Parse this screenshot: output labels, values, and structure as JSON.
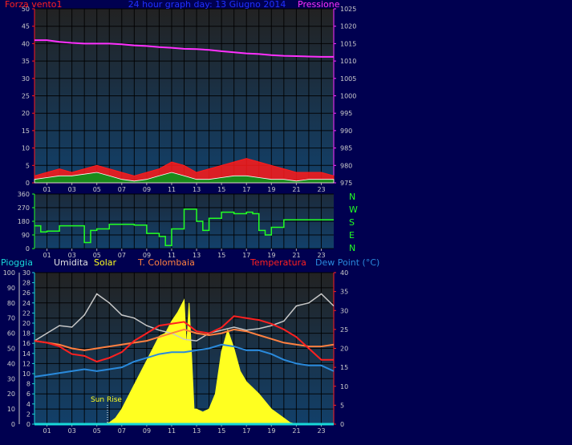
{
  "title": "24 hour graph day: 13 Giugno 2014",
  "colors": {
    "background": "#000050",
    "plot_top": "#222222",
    "plot_bottom": "#12406a",
    "wind": "#ff1a1a",
    "gust": "#1a8a1a",
    "pressure": "#ff30ff",
    "direction": "#22ff22",
    "humidity": "#c8c8c8",
    "solar": "#ffff20",
    "tcolombaia": "#ff8040",
    "temperature": "#ff2020",
    "dewpoint": "#2a8adc",
    "rain": "#18d8d8"
  },
  "x_ticks": [
    "01",
    "03",
    "05",
    "07",
    "09",
    "11",
    "13",
    "15",
    "17",
    "19",
    "21",
    "23"
  ],
  "panel1": {
    "left_label": "Forza vento1",
    "right_label": "Pressione",
    "left_ticks": [
      "0",
      "5",
      "10",
      "15",
      "20",
      "25",
      "30",
      "35",
      "40",
      "45",
      "50"
    ],
    "right_ticks": [
      "975",
      "980",
      "985",
      "990",
      "995",
      "1000",
      "1005",
      "1010",
      "1015",
      "1020",
      "1025"
    ]
  },
  "panel2": {
    "left_ticks": [
      "0",
      "90",
      "180",
      "270",
      "360"
    ],
    "compass": [
      "N",
      "W",
      "S",
      "E",
      "N"
    ]
  },
  "panel3": {
    "labels": {
      "rain": "Pioggia",
      "humidity": "Umidita",
      "solar": "Solar",
      "tcolombaia": "T. Colombaia",
      "temperature": "Temperatura",
      "dewpoint": "Dew Point (°C)"
    },
    "hum_ticks": [
      "0",
      "10",
      "20",
      "30",
      "40",
      "50",
      "60",
      "70",
      "80",
      "90",
      "100"
    ],
    "rain_ticks": [
      "0",
      "2",
      "4",
      "6",
      "8",
      "10",
      "12",
      "14",
      "16",
      "18",
      "20",
      "22",
      "24",
      "26",
      "28",
      "30"
    ],
    "temp_ticks": [
      "0",
      "5",
      "10",
      "15",
      "20",
      "25",
      "30",
      "35",
      "40"
    ],
    "annotation": "Sun Rise"
  },
  "chart_data": [
    {
      "type": "line",
      "x_unit": "hour",
      "xlim": [
        0,
        24
      ],
      "series": [
        {
          "name": "Pressione",
          "axis": "right",
          "ylim": [
            975,
            1025
          ],
          "x": [
            0,
            1,
            2,
            3,
            4,
            5,
            6,
            7,
            8,
            9,
            10,
            11,
            12,
            13,
            14,
            15,
            16,
            17,
            18,
            19,
            20,
            21,
            22,
            23,
            24
          ],
          "values": [
            1016,
            1016,
            1015.5,
            1015.2,
            1015,
            1015,
            1015,
            1014.8,
            1014.5,
            1014.3,
            1014,
            1013.8,
            1013.5,
            1013.4,
            1013.2,
            1012.8,
            1012.5,
            1012.2,
            1012,
            1011.7,
            1011.5,
            1011.4,
            1011.3,
            1011.2,
            1011.2
          ]
        },
        {
          "name": "Forza vento1",
          "axis": "left",
          "ylim": [
            0,
            50
          ],
          "x": [
            0,
            1,
            2,
            3,
            4,
            5,
            6,
            7,
            8,
            9,
            10,
            11,
            12,
            13,
            14,
            15,
            16,
            17,
            18,
            19,
            20,
            21,
            22,
            23,
            24
          ],
          "values": [
            2,
            3,
            4,
            3,
            4,
            5,
            4,
            3,
            2,
            3,
            4,
            6,
            5,
            3,
            4,
            5,
            6,
            7,
            6,
            5,
            4,
            3,
            3,
            3,
            2
          ]
        },
        {
          "axis": "left",
          "ylim": [
            0,
            50
          ],
          "x": [
            0,
            1,
            2,
            3,
            4,
            5,
            6,
            7,
            8,
            9,
            10,
            11,
            12,
            13,
            14,
            15,
            16,
            17,
            18,
            19,
            20,
            21,
            22,
            23,
            24
          ],
          "values": [
            1,
            1.5,
            2,
            2,
            2.5,
            3,
            2,
            1,
            0.5,
            1,
            2,
            3,
            2,
            1,
            1,
            1.5,
            2,
            2,
            1.5,
            1,
            1,
            0.5,
            1,
            1,
            1
          ]
        }
      ]
    },
    {
      "type": "line",
      "x_unit": "hour",
      "xlim": [
        0,
        24
      ],
      "ylim": [
        0,
        360
      ],
      "series": [
        {
          "axis": "left",
          "x": [
            0,
            0.5,
            1,
            2,
            3,
            4,
            4.5,
            5,
            6,
            7,
            8,
            9,
            10,
            10.5,
            11,
            12,
            13,
            13.5,
            14,
            15,
            16,
            17,
            17.5,
            18,
            18.5,
            19,
            20,
            21,
            22,
            23,
            24
          ],
          "values": [
            150,
            110,
            115,
            150,
            150,
            40,
            120,
            130,
            160,
            160,
            155,
            100,
            80,
            20,
            130,
            260,
            180,
            120,
            200,
            240,
            230,
            240,
            230,
            120,
            90,
            140,
            190,
            190,
            190,
            190,
            190
          ]
        }
      ]
    },
    {
      "type": "line",
      "x_unit": "hour",
      "xlim": [
        0,
        24
      ],
      "series": [
        {
          "name": "Umidita",
          "axis": "left",
          "ylim": [
            0,
            100
          ],
          "x": [
            0,
            1,
            2,
            3,
            4,
            5,
            6,
            7,
            8,
            9,
            10,
            11,
            12,
            13,
            14,
            15,
            16,
            17,
            18,
            19,
            20,
            21,
            22,
            23,
            24
          ],
          "values": [
            55,
            60,
            65,
            64,
            72,
            86,
            80,
            72,
            70,
            65,
            62,
            60,
            56,
            55,
            60,
            62,
            64,
            62,
            63,
            65,
            68,
            78,
            80,
            86,
            78
          ]
        },
        {
          "name": "T. Colombaia",
          "axis": "right",
          "ylim": [
            0,
            40
          ],
          "x": [
            0,
            1,
            2,
            3,
            4,
            5,
            6,
            7,
            8,
            9,
            10,
            11,
            12,
            13,
            14,
            15,
            16,
            17,
            18,
            19,
            20,
            21,
            22,
            23,
            24
          ],
          "values": [
            22,
            21.5,
            21,
            20,
            19.5,
            20,
            20.5,
            21,
            21.5,
            22,
            23,
            24,
            25,
            24,
            23.5,
            24,
            25,
            24.5,
            23.5,
            22.5,
            21.5,
            21,
            20.5,
            20.5,
            21
          ]
        },
        {
          "name": "Temperatura",
          "axis": "right",
          "ylim": [
            0,
            40
          ],
          "x": [
            0,
            1,
            2,
            3,
            4,
            5,
            6,
            7,
            8,
            9,
            10,
            11,
            12,
            13,
            14,
            15,
            16,
            17,
            18,
            19,
            20,
            21,
            22,
            23,
            24
          ],
          "values": [
            22,
            21.5,
            20.5,
            18.5,
            18,
            16.5,
            17.5,
            19,
            22,
            24,
            26,
            26.5,
            27,
            24.5,
            24,
            25.5,
            28.5,
            28,
            27.5,
            26.5,
            25,
            23,
            20,
            17,
            17
          ]
        },
        {
          "name": "Dew Point (°C)",
          "axis": "right",
          "ylim": [
            0,
            40
          ],
          "x": [
            0,
            1,
            2,
            3,
            4,
            5,
            6,
            7,
            8,
            9,
            10,
            11,
            12,
            13,
            14,
            15,
            16,
            17,
            18,
            19,
            20,
            21,
            22,
            23,
            24
          ],
          "values": [
            12.5,
            13,
            13.5,
            14,
            14.5,
            14,
            14.5,
            15,
            16.5,
            17.5,
            18.5,
            19,
            19,
            19.5,
            20,
            21,
            20.5,
            19.5,
            19.5,
            18.5,
            17,
            16,
            15.5,
            15.5,
            14
          ]
        },
        {
          "name": "Solar",
          "axis": "left",
          "ylim": [
            0,
            100
          ],
          "x": [
            0,
            5.5,
            6,
            6.5,
            7,
            8,
            9,
            10,
            10.5,
            11,
            11.5,
            12,
            12.2,
            12.4,
            12.8,
            13,
            13.5,
            14,
            14.5,
            15,
            15.5,
            16,
            16.5,
            17,
            18,
            19,
            20,
            20.5,
            21,
            24
          ],
          "values": [
            0,
            0,
            1,
            4,
            10,
            26,
            42,
            58,
            60,
            68,
            74,
            82,
            50,
            80,
            10,
            10,
            8,
            10,
            20,
            48,
            62,
            50,
            35,
            28,
            20,
            10,
            4,
            1,
            0,
            0
          ]
        },
        {
          "name": "Pioggia",
          "axis": "left",
          "ylim": [
            0,
            30
          ],
          "x": [
            0,
            24
          ],
          "values": [
            0,
            0
          ]
        }
      ]
    }
  ]
}
